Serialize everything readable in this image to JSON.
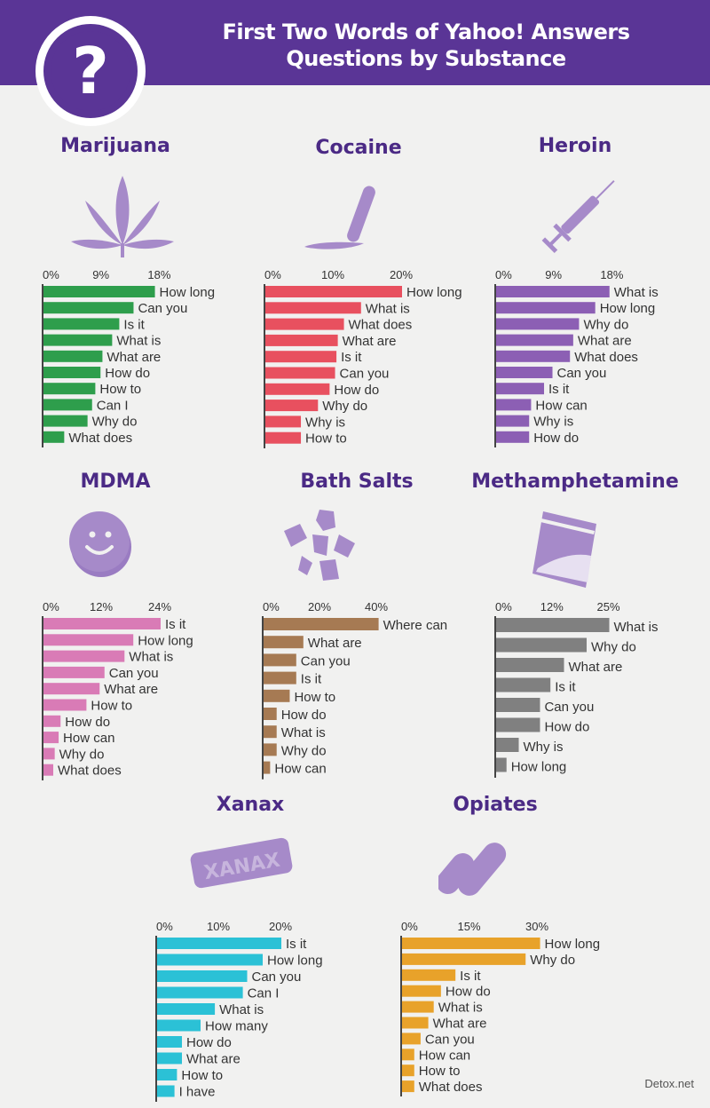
{
  "title_lines": [
    "First Two Words of Yahoo! Answers",
    "Questions by Substance"
  ],
  "header_icon_glyph": "?",
  "footer": "Detox.net",
  "colors": {
    "header": "#5a3596",
    "title": "#4b2a85",
    "icon": "#a68ac9"
  },
  "chart_data": [
    {
      "type": "bar",
      "orientation": "horizontal",
      "title": "Marijuana",
      "color": "#2e9e4c",
      "icon": "cannabis-leaf-icon",
      "ticks": [
        "0%",
        "9%",
        "18%"
      ],
      "xlim": [
        0,
        18
      ],
      "categories": [
        "How long",
        "Can you",
        "Is it",
        "What is",
        "What are",
        "How do",
        "How to",
        "Can I",
        "Why do",
        "What does"
      ],
      "values": [
        17.2,
        13.9,
        11.7,
        10.6,
        9.1,
        8.8,
        8.0,
        7.5,
        6.8,
        3.2
      ]
    },
    {
      "type": "bar",
      "orientation": "horizontal",
      "title": "Cocaine",
      "color": "#e8505f",
      "icon": "cocaine-line-icon",
      "ticks": [
        "0%",
        "10%",
        "20%"
      ],
      "xlim": [
        0,
        20
      ],
      "categories": [
        "How long",
        "What is",
        "What does",
        "What are",
        "Is it",
        "Can you",
        "How do",
        "Why do",
        "Why is",
        "How to"
      ],
      "values": [
        20.0,
        14.0,
        11.5,
        10.6,
        10.4,
        10.2,
        9.4,
        7.7,
        5.2,
        5.2
      ]
    },
    {
      "type": "bar",
      "orientation": "horizontal",
      "title": "Heroin",
      "color": "#8c5fb4",
      "icon": "syringe-icon",
      "ticks": [
        "0%",
        "9%",
        "18%"
      ],
      "xlim": [
        0,
        18
      ],
      "categories": [
        "What is",
        "How long",
        "Why do",
        "What are",
        "What does",
        "Can you",
        "Is it",
        "How can",
        "Why is",
        "How do"
      ],
      "values": [
        17.5,
        15.3,
        12.8,
        11.9,
        11.4,
        8.7,
        7.4,
        5.4,
        5.1,
        5.1
      ]
    },
    {
      "type": "bar",
      "orientation": "horizontal",
      "title": "MDMA",
      "color": "#d97bb6",
      "icon": "ecstasy-pill-icon",
      "ticks": [
        "0%",
        "12%",
        "24%"
      ],
      "xlim": [
        0,
        24
      ],
      "categories": [
        "Is it",
        "How long",
        "What is",
        "Can you",
        "What are",
        "How to",
        "How do",
        "How can",
        "Why do",
        "What does"
      ],
      "values": [
        24.0,
        18.4,
        16.6,
        12.5,
        11.5,
        8.8,
        3.5,
        3.1,
        2.3,
        2.0
      ]
    },
    {
      "type": "bar",
      "orientation": "horizontal",
      "title": "Bath Salts",
      "color": "#a67a53",
      "icon": "crystals-icon",
      "ticks": [
        "0%",
        "20%",
        "40%"
      ],
      "xlim": [
        0,
        40
      ],
      "categories": [
        "Where can",
        "What are",
        "Can you",
        "Is it",
        "How to",
        "How do",
        "What is",
        "Why do",
        "How can"
      ],
      "values": [
        40.5,
        14.0,
        11.5,
        11.5,
        9.2,
        4.6,
        4.6,
        4.6,
        2.3
      ]
    },
    {
      "type": "bar",
      "orientation": "horizontal",
      "title": "Methamphetamine",
      "color": "#808080",
      "icon": "baggie-icon",
      "ticks": [
        "0%",
        "12%",
        "25%"
      ],
      "xlim": [
        0,
        25
      ],
      "categories": [
        "What is",
        "Why do",
        "What are",
        "Is it",
        "Can you",
        "How do",
        "Why is",
        "How long"
      ],
      "values": [
        25.0,
        20.0,
        15.0,
        12.0,
        9.7,
        9.7,
        5.0,
        2.3
      ]
    },
    {
      "type": "bar",
      "orientation": "horizontal",
      "title": "Xanax",
      "color": "#2bc1d6",
      "icon": "xanax-bar-icon",
      "ticks": [
        "0%",
        "10%",
        "20%"
      ],
      "xlim": [
        0,
        20
      ],
      "categories": [
        "Is it",
        "How long",
        "Can you",
        "Can I",
        "What is",
        "How many",
        "How do",
        "What are",
        "How to",
        "I have"
      ],
      "values": [
        20.0,
        17.0,
        14.5,
        13.8,
        9.3,
        7.0,
        4.0,
        4.0,
        3.2,
        2.8
      ]
    },
    {
      "type": "bar",
      "orientation": "horizontal",
      "title": "Opiates",
      "color": "#e8a22a",
      "icon": "capsules-icon",
      "ticks": [
        "0%",
        "15%",
        "30%"
      ],
      "xlim": [
        0,
        30
      ],
      "categories": [
        "How long",
        "Why do",
        "Is it",
        "How do",
        "What is",
        "What are",
        "Can you",
        "How can",
        "How to",
        "What does"
      ],
      "values": [
        30.5,
        27.3,
        11.8,
        8.6,
        7.0,
        5.8,
        4.1,
        2.7,
        2.7,
        2.7
      ]
    }
  ]
}
